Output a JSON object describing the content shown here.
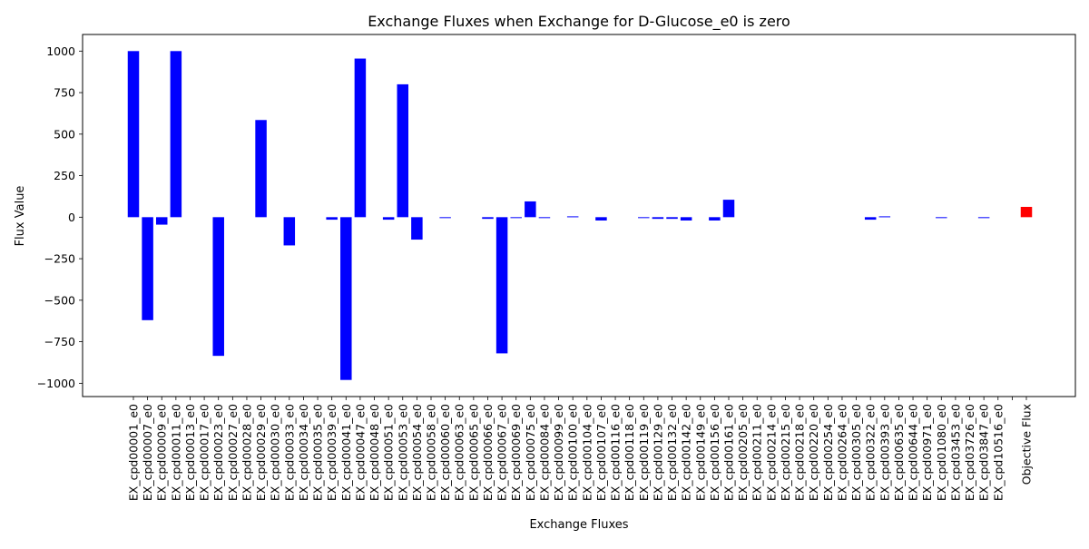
{
  "chart_data": {
    "type": "bar",
    "title": "Exchange Fluxes when Exchange for D-Glucose_e0 is zero",
    "xlabel": "Exchange Fluxes",
    "ylabel": "Flux Value",
    "ylim": [
      -1080,
      1100
    ],
    "yticks": [
      -1000,
      -750,
      -500,
      -250,
      0,
      250,
      500,
      750,
      1000
    ],
    "ytick_labels": [
      "−1000",
      "−750",
      "−500",
      "−250",
      "0",
      "250",
      "500",
      "750",
      "1000"
    ],
    "grid": false,
    "colors": {
      "exchange": "#0000ff",
      "objective": "#ff0000"
    },
    "categories": [
      "EX_cpd00001_e0",
      "EX_cpd00007_e0",
      "EX_cpd00009_e0",
      "EX_cpd00011_e0",
      "EX_cpd00013_e0",
      "EX_cpd00017_e0",
      "EX_cpd00023_e0",
      "EX_cpd00027_e0",
      "EX_cpd00028_e0",
      "EX_cpd00029_e0",
      "EX_cpd00030_e0",
      "EX_cpd00033_e0",
      "EX_cpd00034_e0",
      "EX_cpd00035_e0",
      "EX_cpd00039_e0",
      "EX_cpd00041_e0",
      "EX_cpd00047_e0",
      "EX_cpd00048_e0",
      "EX_cpd00051_e0",
      "EX_cpd00053_e0",
      "EX_cpd00054_e0",
      "EX_cpd00058_e0",
      "EX_cpd00060_e0",
      "EX_cpd00063_e0",
      "EX_cpd00065_e0",
      "EX_cpd00066_e0",
      "EX_cpd00067_e0",
      "EX_cpd00069_e0",
      "EX_cpd00075_e0",
      "EX_cpd00084_e0",
      "EX_cpd00099_e0",
      "EX_cpd00100_e0",
      "EX_cpd00104_e0",
      "EX_cpd00107_e0",
      "EX_cpd00116_e0",
      "EX_cpd00118_e0",
      "EX_cpd00119_e0",
      "EX_cpd00129_e0",
      "EX_cpd00132_e0",
      "EX_cpd00142_e0",
      "EX_cpd00149_e0",
      "EX_cpd00156_e0",
      "EX_cpd00161_e0",
      "EX_cpd00205_e0",
      "EX_cpd00211_e0",
      "EX_cpd00214_e0",
      "EX_cpd00215_e0",
      "EX_cpd00218_e0",
      "EX_cpd00220_e0",
      "EX_cpd00254_e0",
      "EX_cpd00264_e0",
      "EX_cpd00305_e0",
      "EX_cpd00322_e0",
      "EX_cpd00393_e0",
      "EX_cpd00635_e0",
      "EX_cpd00644_e0",
      "EX_cpd00971_e0",
      "EX_cpd01080_e0",
      "EX_cpd03453_e0",
      "EX_cpd03726_e0",
      "EX_cpd03847_e0",
      "EX_cpd10516_e0",
      "",
      "Objective Flux"
    ],
    "values": [
      1000,
      -620,
      -45,
      1000,
      0,
      0,
      -835,
      0,
      0,
      585,
      0,
      -170,
      0,
      0,
      -15,
      -980,
      955,
      0,
      -15,
      800,
      -135,
      0,
      -5,
      0,
      0,
      -10,
      -820,
      -5,
      95,
      -5,
      0,
      5,
      0,
      -20,
      0,
      0,
      -5,
      -10,
      -10,
      -20,
      0,
      -20,
      105,
      0,
      0,
      0,
      0,
      0,
      0,
      0,
      0,
      0,
      -15,
      5,
      0,
      0,
      0,
      -5,
      0,
      0,
      -5,
      0,
      0,
      62
    ],
    "bar_colors": [
      "#0000ff",
      "#0000ff",
      "#0000ff",
      "#0000ff",
      "#0000ff",
      "#0000ff",
      "#0000ff",
      "#0000ff",
      "#0000ff",
      "#0000ff",
      "#0000ff",
      "#0000ff",
      "#0000ff",
      "#0000ff",
      "#0000ff",
      "#0000ff",
      "#0000ff",
      "#0000ff",
      "#0000ff",
      "#0000ff",
      "#0000ff",
      "#0000ff",
      "#0000ff",
      "#0000ff",
      "#0000ff",
      "#0000ff",
      "#0000ff",
      "#0000ff",
      "#0000ff",
      "#0000ff",
      "#0000ff",
      "#0000ff",
      "#0000ff",
      "#0000ff",
      "#0000ff",
      "#0000ff",
      "#0000ff",
      "#0000ff",
      "#0000ff",
      "#0000ff",
      "#0000ff",
      "#0000ff",
      "#0000ff",
      "#0000ff",
      "#0000ff",
      "#0000ff",
      "#0000ff",
      "#0000ff",
      "#0000ff",
      "#0000ff",
      "#0000ff",
      "#0000ff",
      "#0000ff",
      "#0000ff",
      "#0000ff",
      "#0000ff",
      "#0000ff",
      "#0000ff",
      "#0000ff",
      "#0000ff",
      "#0000ff",
      "#0000ff",
      "#0000ff",
      "#ff0000"
    ]
  }
}
